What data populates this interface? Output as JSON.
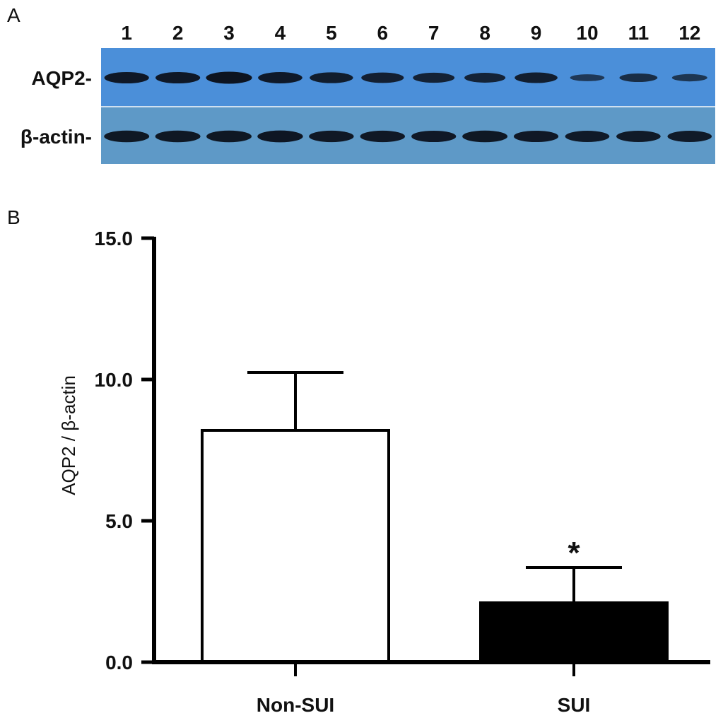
{
  "panels": {
    "a_label": "A",
    "b_label": "B"
  },
  "blot": {
    "lanes": [
      "1",
      "2",
      "3",
      "4",
      "5",
      "6",
      "7",
      "8",
      "9",
      "10",
      "11",
      "12"
    ],
    "rows": [
      {
        "label": "AQP2-",
        "band_intensity": [
          0.92,
          0.92,
          1.0,
          0.9,
          0.85,
          0.8,
          0.75,
          0.72,
          0.82,
          0.35,
          0.55,
          0.4
        ]
      },
      {
        "label": "β-actin-",
        "band_intensity": [
          0.95,
          0.95,
          0.95,
          0.97,
          0.93,
          0.93,
          0.92,
          0.95,
          0.92,
          0.9,
          0.9,
          0.9
        ]
      }
    ],
    "colors": {
      "top_membrane": "#4b8fd9",
      "bottom_membrane": "#5e99c7",
      "band": "#0d1420"
    }
  },
  "chart_data": {
    "type": "bar",
    "categories": [
      "Non-SUI",
      "SUI"
    ],
    "values": [
      8.2,
      2.1
    ],
    "errors": [
      2.05,
      1.25
    ],
    "significance": [
      "",
      "*"
    ],
    "bar_colors": [
      "#ffffff",
      "#000000"
    ],
    "ylabel": "AQP2 / β-actin",
    "xlabel": "",
    "ylim": [
      0,
      15
    ],
    "yticks": [
      0,
      5,
      10,
      15
    ],
    "ytick_labels": [
      "0.0",
      "5.0",
      "10.0",
      "15.0"
    ]
  }
}
